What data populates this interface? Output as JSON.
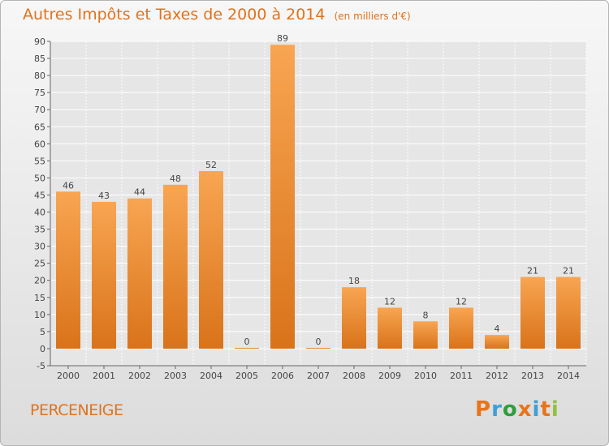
{
  "header": {
    "title": "Autres Impôts et Taxes de 2000 à 2014",
    "subtitle": "(en milliers d'€)"
  },
  "footer": {
    "location": "PERCENEIGE",
    "logo_text": "Proxiti",
    "logo_colors": [
      "#e8741a",
      "#3f9fd6",
      "#2e9e3a",
      "#e8741a",
      "#3f9fd6",
      "#e8741a",
      "#8fc23e"
    ]
  },
  "colors": {
    "bar_top": "#f8a552",
    "bar_bottom": "#d9731a",
    "accent": "#e0731c",
    "grid": "#ffffff"
  },
  "chart_data": {
    "type": "bar",
    "title": "Autres Impôts et Taxes de 2000 à 2014",
    "subtitle": "(en milliers d'€)",
    "categories": [
      "2000",
      "2001",
      "2002",
      "2003",
      "2004",
      "2005",
      "2006",
      "2007",
      "2008",
      "2009",
      "2010",
      "2011",
      "2012",
      "2013",
      "2014"
    ],
    "values": [
      46,
      43,
      44,
      48,
      52,
      0,
      89,
      0,
      18,
      12,
      8,
      12,
      4,
      21,
      21
    ],
    "ylim": [
      -5,
      90
    ],
    "yticks": [
      -5,
      0,
      5,
      10,
      15,
      20,
      25,
      30,
      35,
      40,
      45,
      50,
      55,
      60,
      65,
      70,
      75,
      80,
      85,
      90
    ],
    "grid": true,
    "legend": "none"
  }
}
